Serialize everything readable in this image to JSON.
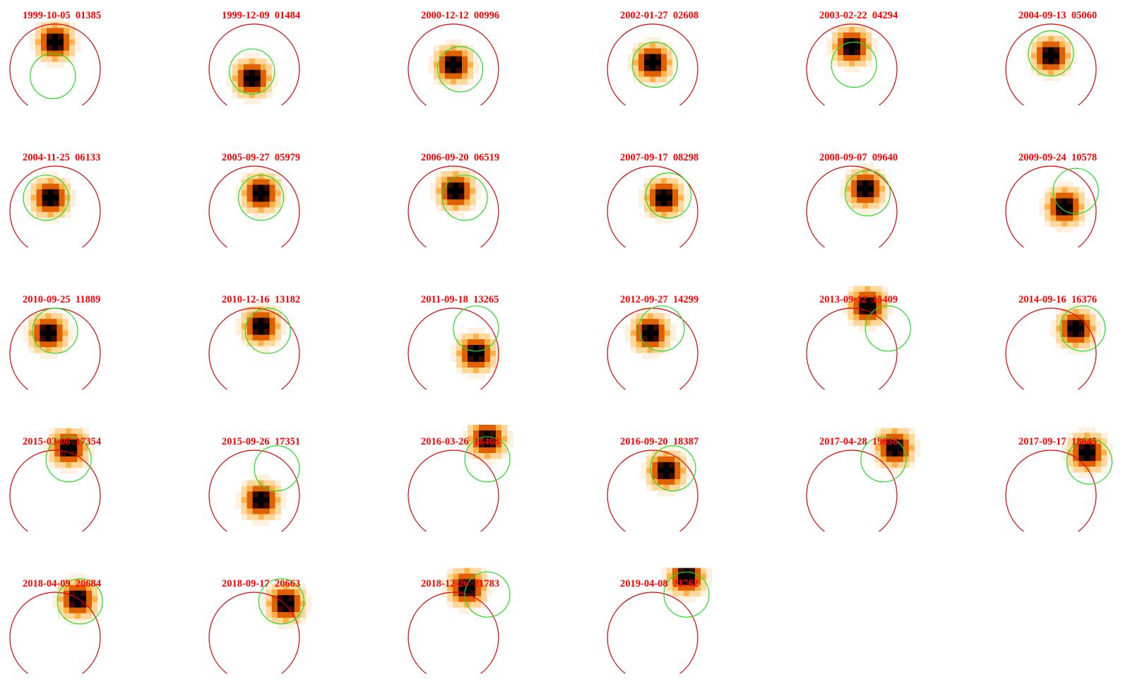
{
  "colors": {
    "label": "#ff0000",
    "aperture_circle": "#dd0000",
    "source_circle": "#22dd22",
    "cmap": [
      "#ffffff",
      "#fff1e0",
      "#ffd79a",
      "#ffb24a",
      "#ff8a10",
      "#e06000",
      "#9a3000",
      "#3a0c00",
      "#000000"
    ]
  },
  "panels": [
    {
      "label": "1999-10-05  01385",
      "blob": [
        0.0,
        -0.6
      ],
      "ring": [
        -0.05,
        0.15
      ]
    },
    {
      "label": "1999-12-09  01484",
      "blob": [
        -0.05,
        0.2
      ],
      "ring": [
        -0.05,
        0.05
      ]
    },
    {
      "label": "2000-12-12  00996",
      "blob": [
        0.0,
        -0.1
      ],
      "ring": [
        0.15,
        0.0
      ]
    },
    {
      "label": "2002-01-27  02608",
      "blob": [
        0.0,
        -0.15
      ],
      "ring": [
        0.05,
        -0.1
      ]
    },
    {
      "label": "2003-02-22  04294",
      "blob": [
        0.0,
        -0.5
      ],
      "ring": [
        0.05,
        -0.1
      ]
    },
    {
      "label": "2004-09-13  05060",
      "blob": [
        0.0,
        -0.3
      ],
      "ring": [
        0.0,
        -0.35
      ]
    },
    {
      "label": "2004-11-25  06133",
      "blob": [
        -0.1,
        -0.3
      ],
      "ring": [
        -0.2,
        -0.3
      ]
    },
    {
      "label": "2005-09-27  05979",
      "blob": [
        0.15,
        -0.4
      ],
      "ring": [
        0.15,
        -0.3
      ]
    },
    {
      "label": "2006-09-20  06519",
      "blob": [
        0.05,
        -0.45
      ],
      "ring": [
        0.25,
        -0.3
      ]
    },
    {
      "label": "2007-09-17  08298",
      "blob": [
        0.25,
        -0.3
      ],
      "ring": [
        0.35,
        -0.35
      ]
    },
    {
      "label": "2008-09-07  09640",
      "blob": [
        0.3,
        -0.5
      ],
      "ring": [
        0.35,
        -0.4
      ]
    },
    {
      "label": "2009-09-24  10578",
      "blob": [
        0.3,
        -0.1
      ],
      "ring": [
        0.55,
        -0.45
      ]
    },
    {
      "label": "2010-09-25  11889",
      "blob": [
        -0.15,
        -0.45
      ],
      "ring": [
        0.0,
        -0.5
      ]
    },
    {
      "label": "2010-12-16  13182",
      "blob": [
        0.15,
        -0.6
      ],
      "ring": [
        0.3,
        -0.5
      ]
    },
    {
      "label": "2011-09-18  13265",
      "blob": [
        0.5,
        0.0
      ],
      "ring": [
        0.5,
        -0.55
      ]
    },
    {
      "label": "2012-09-27  14299",
      "blob": [
        -0.05,
        -0.45
      ],
      "ring": [
        0.2,
        -0.55
      ]
    },
    {
      "label": "2013-09-12  15409",
      "blob": [
        0.35,
        -1.05
      ],
      "ring": [
        0.8,
        -0.55
      ]
    },
    {
      "label": "2014-09-16  16376",
      "blob": [
        0.55,
        -0.55
      ],
      "ring": [
        0.7,
        -0.55
      ]
    },
    {
      "label": "2015-03-08  17354",
      "blob": [
        0.3,
        -1.05
      ],
      "ring": [
        0.3,
        -0.8
      ]
    },
    {
      "label": "2015-09-26  17351",
      "blob": [
        0.15,
        0.1
      ],
      "ring": [
        0.5,
        -0.6
      ]
    },
    {
      "label": "2016-03-26  18408",
      "blob": [
        0.75,
        -1.25
      ],
      "ring": [
        0.75,
        -0.8
      ]
    },
    {
      "label": "2016-09-20  18387",
      "blob": [
        0.3,
        -0.55
      ],
      "ring": [
        0.45,
        -0.6
      ]
    },
    {
      "label": "2017-04-28  19836",
      "blob": [
        0.95,
        -1.05
      ],
      "ring": [
        0.7,
        -0.8
      ]
    },
    {
      "label": "2017-09-17  18645",
      "blob": [
        0.8,
        -0.95
      ],
      "ring": [
        0.85,
        -0.75
      ]
    },
    {
      "label": "2018-04-09  20684",
      "blob": [
        0.5,
        -0.85
      ],
      "ring": [
        0.55,
        -0.8
      ]
    },
    {
      "label": "2018-09-17  20663",
      "blob": [
        0.7,
        -0.75
      ],
      "ring": [
        0.6,
        -0.8
      ]
    },
    {
      "label": "2018-12-26  21783",
      "blob": [
        0.3,
        -1.1
      ],
      "ring": [
        0.75,
        -0.95
      ]
    },
    {
      "label": "2019-04-08  21762",
      "blob": [
        0.75,
        -1.35
      ],
      "ring": [
        0.75,
        -0.95
      ]
    }
  ]
}
